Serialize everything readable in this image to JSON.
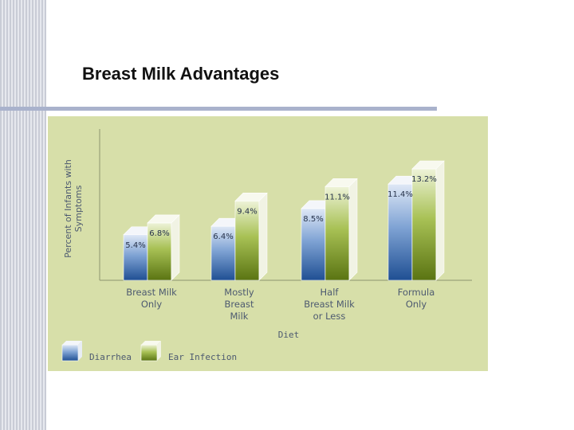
{
  "slide": {
    "title": "Breast Milk Advantages"
  },
  "chart_data": {
    "type": "bar",
    "ylabel": "Percent of Infants with Symptoms",
    "xlabel": "Diet",
    "categories": [
      [
        "Breast Milk",
        "Only"
      ],
      [
        "Mostly",
        "Breast",
        "Milk"
      ],
      [
        "Half",
        "Breast Milk",
        "or Less"
      ],
      [
        "Formula",
        "Only"
      ]
    ],
    "series": [
      {
        "name": "Diarrhea",
        "values": [
          5.4,
          6.4,
          8.5,
          11.4
        ],
        "labels": [
          "5.4%",
          "6.4%",
          "8.5%",
          "11.4%"
        ],
        "color": "#2a62a8"
      },
      {
        "name": "Ear Infection",
        "values": [
          6.8,
          9.4,
          11.1,
          13.2
        ],
        "labels": [
          "6.8%",
          "9.4%",
          "11.1%",
          "13.2%"
        ],
        "color": "#6f8a1c"
      }
    ],
    "ylim": [
      0,
      15
    ],
    "grid": false,
    "legend_position": "bottom-left"
  }
}
